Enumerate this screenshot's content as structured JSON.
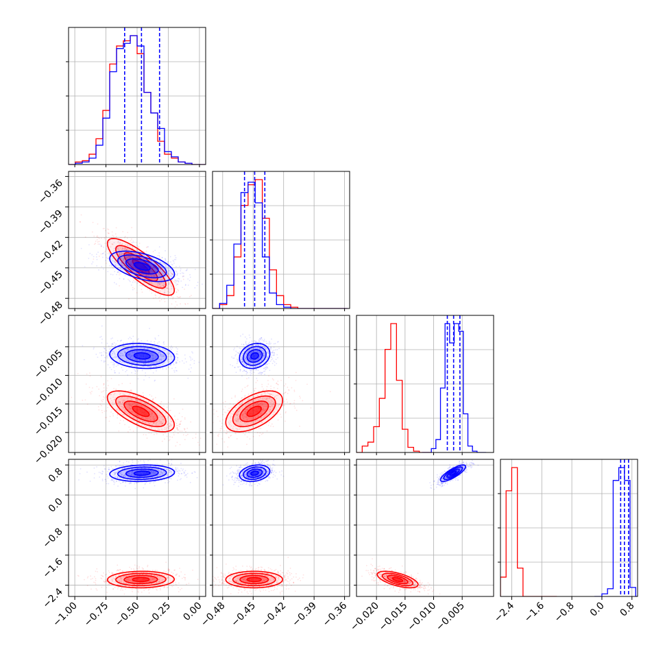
{
  "chart_data": {
    "type": "corner",
    "grid": true,
    "colors": {
      "series_a": "#ff0000",
      "series_b": "#0000ff"
    },
    "parameters": [
      {
        "range": [
          -1.05,
          0.05
        ],
        "ticks": [
          -1.0,
          -0.75,
          -0.5,
          -0.25,
          0.0
        ],
        "tick_labels": [
          "−1.00",
          "−0.75",
          "−0.50",
          "−0.25",
          "0.00"
        ]
      },
      {
        "range": [
          -0.49,
          -0.355
        ],
        "ticks": [
          -0.48,
          -0.45,
          -0.42,
          -0.39,
          -0.36
        ],
        "tick_labels": [
          "−0.48",
          "−0.45",
          "−0.42",
          "−0.39",
          "−0.36"
        ]
      },
      {
        "range": [
          -0.0235,
          0.0005
        ],
        "ticks": [
          -0.02,
          -0.015,
          -0.01,
          -0.005
        ],
        "tick_labels": [
          "−0.020",
          "−0.015",
          "−0.010",
          "−0.005"
        ]
      },
      {
        "range": [
          -2.7,
          0.95
        ],
        "ticks": [
          -2.4,
          -1.6,
          -0.8,
          0.0,
          0.8
        ],
        "tick_labels": [
          "−2.4",
          "−1.6",
          "−0.8",
          "0.0",
          "0.8"
        ]
      }
    ],
    "series": [
      {
        "color": "#ff0000",
        "histograms": [
          {
            "edges": [
              -1.05,
              -0.995,
              -0.94,
              -0.885,
              -0.83,
              -0.775,
              -0.72,
              -0.665,
              -0.61,
              -0.555,
              -0.5,
              -0.445,
              -0.39,
              -0.335,
              -0.28,
              -0.225,
              -0.17,
              -0.115,
              -0.06,
              -0.005,
              0.05
            ],
            "counts": [
              0.0,
              0.02,
              0.03,
              0.08,
              0.2,
              0.42,
              0.78,
              0.92,
              0.96,
              1.0,
              0.86,
              0.56,
              0.4,
              0.18,
              0.08,
              0.05,
              0.02,
              0.01,
              0.0,
              0.0
            ]
          },
          {
            "edges": [
              -0.49,
              -0.483,
              -0.476,
              -0.469,
              -0.462,
              -0.455,
              -0.448,
              -0.441,
              -0.434,
              -0.427,
              -0.42,
              -0.413,
              -0.406,
              -0.399,
              -0.392,
              -0.385,
              -0.378,
              -0.371,
              -0.364,
              -0.357
            ],
            "counts": [
              0.0,
              0.03,
              0.1,
              0.4,
              0.8,
              0.96,
              1.0,
              0.7,
              0.3,
              0.1,
              0.03,
              0.01,
              0.0,
              0.0,
              0.0,
              0.0,
              0.0,
              0.0,
              0.0
            ]
          },
          {
            "edges": [
              -0.0235,
              -0.0225,
              -0.0215,
              -0.0205,
              -0.0195,
              -0.0185,
              -0.0175,
              -0.0165,
              -0.0155,
              -0.0145,
              -0.0135,
              -0.0125,
              -0.0115,
              -0.0105
            ],
            "counts": [
              0.0,
              0.05,
              0.08,
              0.2,
              0.42,
              0.8,
              1.0,
              0.56,
              0.18,
              0.04,
              0.01,
              0.0,
              0.0
            ]
          },
          {
            "edges": [
              -2.7,
              -2.55,
              -2.4,
              -2.25,
              -2.1,
              -1.95,
              -1.8,
              -1.65,
              -1.5,
              -1.35,
              -1.2
            ],
            "counts": [
              0.15,
              0.82,
              1.0,
              0.22,
              0.0,
              0.0,
              0.0,
              0.0,
              0.0,
              0.0
            ]
          }
        ],
        "quantiles": [
          [],
          [],
          [],
          []
        ],
        "means": [
          -0.47,
          -0.449,
          -0.0163,
          -2.25
        ],
        "cov": [
          [
            0.018,
            -0.00155,
            -0.00016,
            0.0005
          ],
          [
            -0.00155,
            0.000196,
            1.35e-05,
            0.0
          ],
          [
            -0.00016,
            1.35e-05,
            3.2e-06,
            -0.00012
          ],
          [
            0.0005,
            0.0,
            -0.00012,
            0.0121
          ]
        ]
      },
      {
        "color": "#0000ff",
        "histograms": [
          {
            "edges": [
              -1.05,
              -0.995,
              -0.94,
              -0.885,
              -0.83,
              -0.775,
              -0.72,
              -0.665,
              -0.61,
              -0.555,
              -0.5,
              -0.445,
              -0.39,
              -0.335,
              -0.28,
              -0.225,
              -0.17,
              -0.115,
              -0.06,
              -0.005,
              0.05
            ],
            "counts": [
              0.0,
              0.01,
              0.02,
              0.05,
              0.15,
              0.36,
              0.72,
              0.9,
              0.94,
              1.0,
              0.92,
              0.56,
              0.4,
              0.28,
              0.1,
              0.06,
              0.02,
              0.01,
              0.0,
              0.0
            ]
          },
          {
            "edges": [
              -0.49,
              -0.483,
              -0.476,
              -0.469,
              -0.462,
              -0.455,
              -0.448,
              -0.441,
              -0.434,
              -0.427,
              -0.42,
              -0.413,
              -0.406,
              -0.399,
              -0.392,
              -0.385,
              -0.378,
              -0.371,
              -0.364,
              -0.357
            ],
            "counts": [
              0.0,
              0.04,
              0.18,
              0.5,
              0.9,
              0.98,
              0.82,
              0.4,
              0.12,
              0.03,
              0.01,
              0.0,
              0.0,
              0.0,
              0.0,
              0.0,
              0.0,
              0.0,
              0.0
            ]
          },
          {
            "edges": [
              -0.012,
              -0.0112,
              -0.0104,
              -0.0096,
              -0.0088,
              -0.008,
              -0.0072,
              -0.0064,
              -0.0056,
              -0.0048,
              -0.004,
              -0.0032,
              -0.0024,
              -0.0016,
              -0.0008
            ],
            "counts": [
              0.0,
              0.0,
              0.03,
              0.1,
              0.5,
              1.0,
              0.85,
              1.0,
              0.94,
              0.3,
              0.05,
              0.01,
              0.0,
              0.0
            ]
          },
          {
            "edges": [
              -0.2,
              0.0,
              0.15,
              0.3,
              0.45,
              0.6,
              0.75,
              0.9,
              0.95
            ],
            "counts": [
              0.0,
              0.02,
              0.06,
              0.9,
              1.0,
              0.9,
              0.07,
              0.0
            ]
          }
        ],
        "quantiles": [
          [
            -0.6,
            -0.465,
            -0.32
          ],
          [
            -0.4585,
            -0.4485,
            -0.4385
          ],
          [
            -0.0076,
            -0.0065,
            -0.0054
          ],
          [
            0.5,
            0.6,
            0.71
          ]
        ],
        "means": [
          -0.46,
          -0.4485,
          -0.0066,
          0.58
        ],
        "cov": [
          [
            0.0169,
            -0.0005,
            -2e-05,
            0.0016
          ],
          [
            -0.0005,
            5.6e-05,
            1.5e-06,
            0.0002
          ],
          [
            -2e-05,
            1.5e-06,
            1.21e-06,
            9.75e-05
          ],
          [
            0.0016,
            0.0002,
            9.75e-05,
            0.0121
          ]
        ]
      }
    ]
  }
}
